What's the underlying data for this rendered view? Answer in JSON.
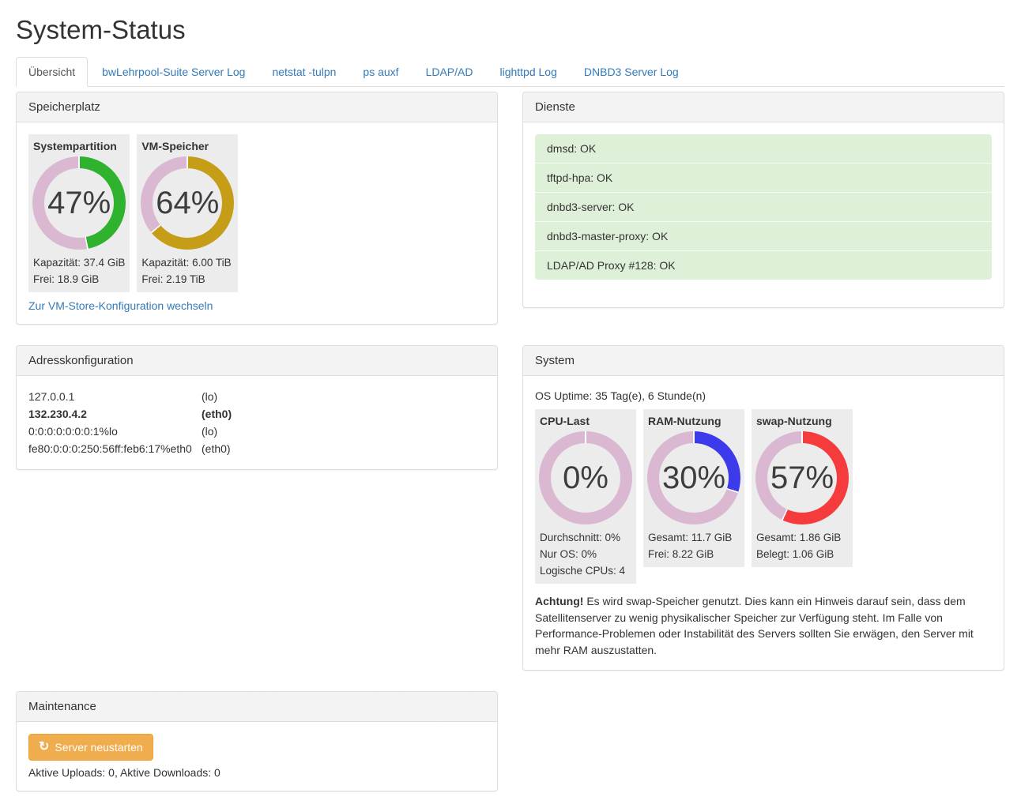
{
  "page": {
    "title": "System-Status"
  },
  "tabs": [
    {
      "label": "Übersicht",
      "active": true
    },
    {
      "label": "bwLehrpool-Suite Server Log",
      "active": false
    },
    {
      "label": "netstat -tulpn",
      "active": false
    },
    {
      "label": "ps auxf",
      "active": false
    },
    {
      "label": "LDAP/AD",
      "active": false
    },
    {
      "label": "lighttpd Log",
      "active": false
    },
    {
      "label": "DNBD3 Server Log",
      "active": false
    }
  ],
  "colors": {
    "track": "#dbb8d1",
    "separator": "#ffffff",
    "link": "#337ab7",
    "service_ok_bg": "#dff0d8",
    "button_warning": "#f0ad4e"
  },
  "storage": {
    "heading": "Speicherplatz",
    "gauges": [
      {
        "title": "Systempartition",
        "percent": 47,
        "percent_label": "47%",
        "color": "#2fb32f",
        "lines": [
          "Kapazität: 37.4 GiB",
          "Frei: 18.9 GiB"
        ]
      },
      {
        "title": "VM-Speicher",
        "percent": 64,
        "percent_label": "64%",
        "color": "#c59d17",
        "lines": [
          "Kapazität: 6.00 TiB",
          "Frei: 2.19 TiB"
        ]
      }
    ],
    "link": "Zur VM-Store-Konfiguration wechseln"
  },
  "services": {
    "heading": "Dienste",
    "items": [
      "dmsd: OK",
      "tftpd-hpa: OK",
      "dnbd3-server: OK",
      "dnbd3-master-proxy: OK",
      "LDAP/AD Proxy #128: OK"
    ]
  },
  "addresses": {
    "heading": "Adresskonfiguration",
    "rows": [
      {
        "ip": "127.0.0.1",
        "iface": "(lo)",
        "bold": false
      },
      {
        "ip": "132.230.4.2",
        "iface": "(eth0)",
        "bold": true
      },
      {
        "ip": "0:0:0:0:0:0:0:1%lo",
        "iface": "(lo)",
        "bold": false
      },
      {
        "ip": "fe80:0:0:0:250:56ff:feb6:17%eth0",
        "iface": "(eth0)",
        "bold": false
      }
    ]
  },
  "system": {
    "heading": "System",
    "uptime": "OS Uptime: 35 Tag(e), 6 Stunde(n)",
    "gauges": [
      {
        "title": "CPU-Last",
        "percent": 0,
        "percent_label": "0%",
        "color": "#dbb8d1",
        "lines": [
          "Durchschnitt: 0%",
          "Nur OS: 0%",
          "Logische CPUs: 4"
        ]
      },
      {
        "title": "RAM-Nutzung",
        "percent": 30,
        "percent_label": "30%",
        "color": "#3b3beb",
        "lines": [
          "Gesamt: 11.7 GiB",
          "Frei: 8.22 GiB"
        ]
      },
      {
        "title": "swap-Nutzung",
        "percent": 57,
        "percent_label": "57%",
        "color": "#f53b3b",
        "lines": [
          "Gesamt: 1.86 GiB",
          "Belegt: 1.06 GiB"
        ]
      }
    ],
    "warning_bold": "Achtung!",
    "warning_text": " Es wird swap-Speicher genutzt. Dies kann ein Hinweis darauf sein, dass dem Satellitenserver zu wenig physikalischer Speicher zur Verfügung steht. Im Falle von Performance-Problemen oder Instabilität des Servers sollten Sie erwägen, den Server mit mehr RAM auszustatten."
  },
  "maintenance": {
    "heading": "Maintenance",
    "restart_button": "Server neustarten",
    "status": "Aktive Uploads: 0, Aktive Downloads: 0"
  }
}
